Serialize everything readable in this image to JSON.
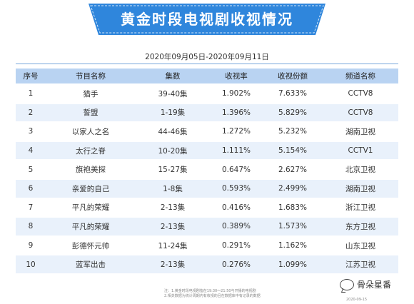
{
  "title": "黄金时段电视剧收视情况",
  "date_range": "2020年09月05日-2020年09月11日",
  "table": {
    "headers": [
      "序号",
      "节目名称",
      "集数",
      "收视率",
      "收视份额",
      "频道名称"
    ],
    "rows": [
      [
        "1",
        "猎手",
        "39-40集",
        "1.902%",
        "7.633%",
        "CCTV8"
      ],
      [
        "2",
        "誓盟",
        "1-19集",
        "1.396%",
        "5.829%",
        "CCTV8"
      ],
      [
        "3",
        "以家人之名",
        "44-46集",
        "1.272%",
        "5.232%",
        "湖南卫视"
      ],
      [
        "4",
        "太行之脊",
        "10-20集",
        "1.111%",
        "5.154%",
        "CCTV1"
      ],
      [
        "5",
        "旗袍美探",
        "15-27集",
        "0.647%",
        "2.627%",
        "北京卫视"
      ],
      [
        "6",
        "亲爱的自己",
        "1-8集",
        "0.593%",
        "2.499%",
        "湖南卫视"
      ],
      [
        "7",
        "平凡的荣耀",
        "2-13集",
        "0.416%",
        "1.683%",
        "浙江卫视"
      ],
      [
        "8",
        "平凡的荣耀",
        "2-13集",
        "0.389%",
        "1.573%",
        "东方卫视"
      ],
      [
        "9",
        "彭德怀元帅",
        "11-24集",
        "0.291%",
        "1.162%",
        "山东卫视"
      ],
      [
        "10",
        "蓝军出击",
        "2-13集",
        "0.276%",
        "1.099%",
        "江苏卫视"
      ]
    ]
  },
  "footnote": {
    "line1": "注：1.黄金时段电视剧指在19:30～21:50与开播的电视剧",
    "line2": "2.相关数据为统计周期内有收视的且在数据库中有记录的数据"
  },
  "footer_date": "2020-09-15",
  "logo_text": "骨朵星番",
  "colors": {
    "banner": "#2f86dc",
    "header_row": "#b9d3f2",
    "stripe": "#e9f1fb"
  }
}
